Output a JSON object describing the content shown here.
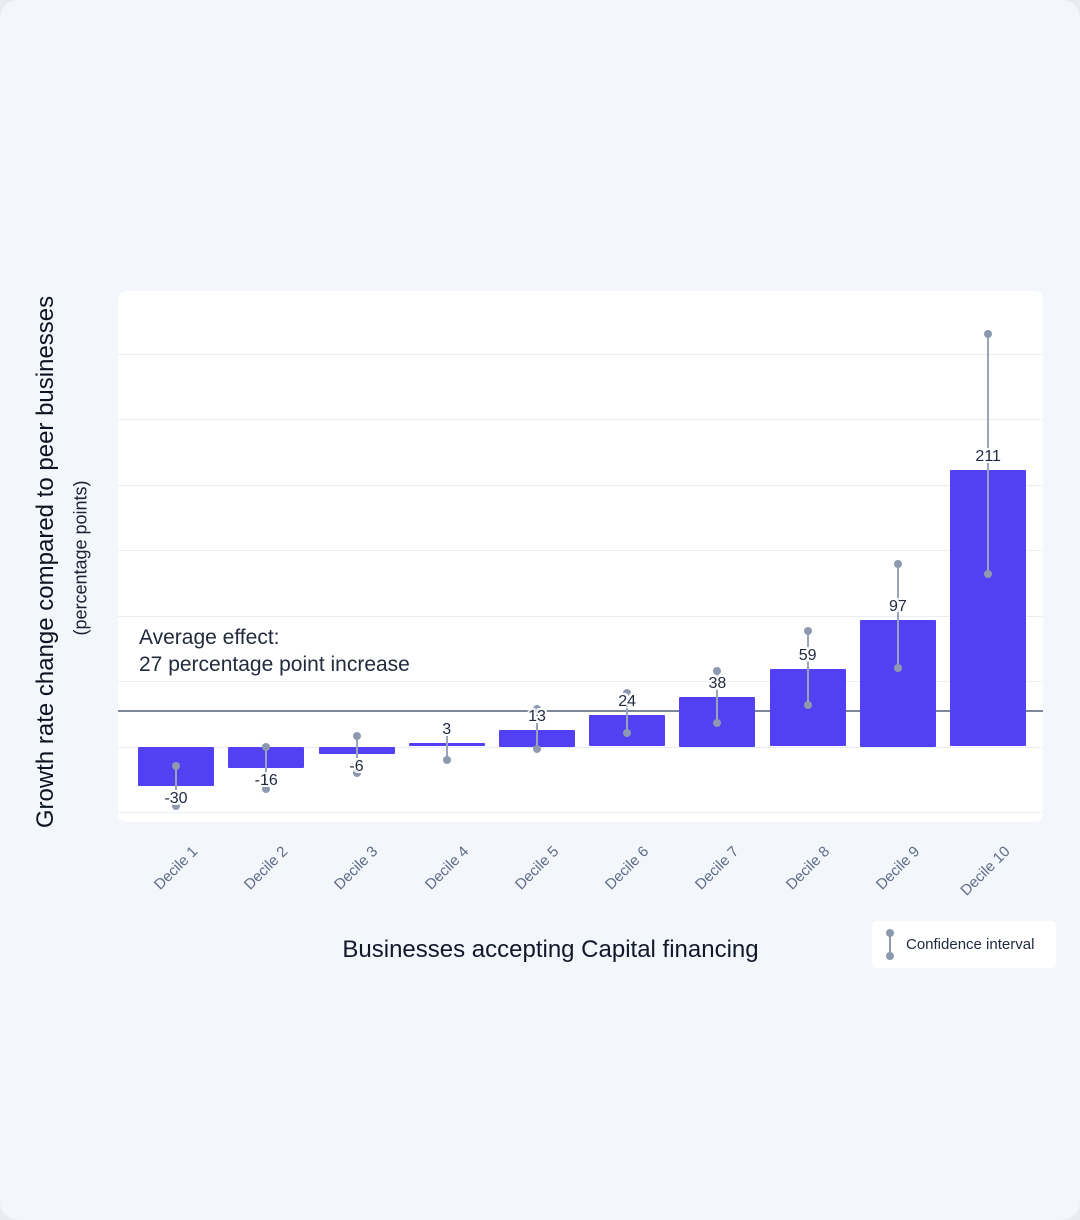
{
  "chart_data": {
    "type": "bar",
    "xlabel": "Businesses accepting Capital financing",
    "ylabel": "Growth rate change compared to peer businesses",
    "ylabel_sub": "(percentage points)",
    "categories": [
      "Decile 1",
      "Decile 2",
      "Decile 3",
      "Decile 4",
      "Decile 5",
      "Decile 6",
      "Decile 7",
      "Decile 8",
      "Decile 9",
      "Decile 10"
    ],
    "values": [
      -30,
      -16,
      -6,
      3,
      13,
      24,
      38,
      59,
      97,
      211
    ],
    "value_labels": [
      "-30",
      "-16",
      "-6",
      "3",
      "13",
      "24",
      "38",
      "59",
      "97",
      "211"
    ],
    "confidence_intervals": [
      [
        -45,
        -15
      ],
      [
        -32,
        0
      ],
      [
        -20,
        8
      ],
      [
        -10,
        16
      ],
      [
        -2,
        29
      ],
      [
        10,
        41
      ],
      [
        18,
        58
      ],
      [
        32,
        88
      ],
      [
        60,
        139
      ],
      [
        132,
        315
      ]
    ],
    "annotation": {
      "line1": "Average effect:",
      "line2": "27 percentage point increase",
      "line_value": 27
    },
    "legend": {
      "label": "Confidence interval"
    },
    "ylim": [
      -57.6,
      347.7
    ],
    "grid_values": [
      -50,
      0,
      50,
      100,
      150,
      200,
      250,
      300
    ],
    "grid": "horizontal",
    "legend_position": "bottom-right",
    "colors": {
      "bar": "#5241f2",
      "whisker": "#8d99ae",
      "average_line": "#7e8798",
      "gridline": "#e9eef5",
      "background": "#f3f6fa",
      "plot_background": "#ffffff",
      "title_text": "#10182b",
      "tick_text": "#5d6c88",
      "value_text": "#1f2940"
    }
  }
}
